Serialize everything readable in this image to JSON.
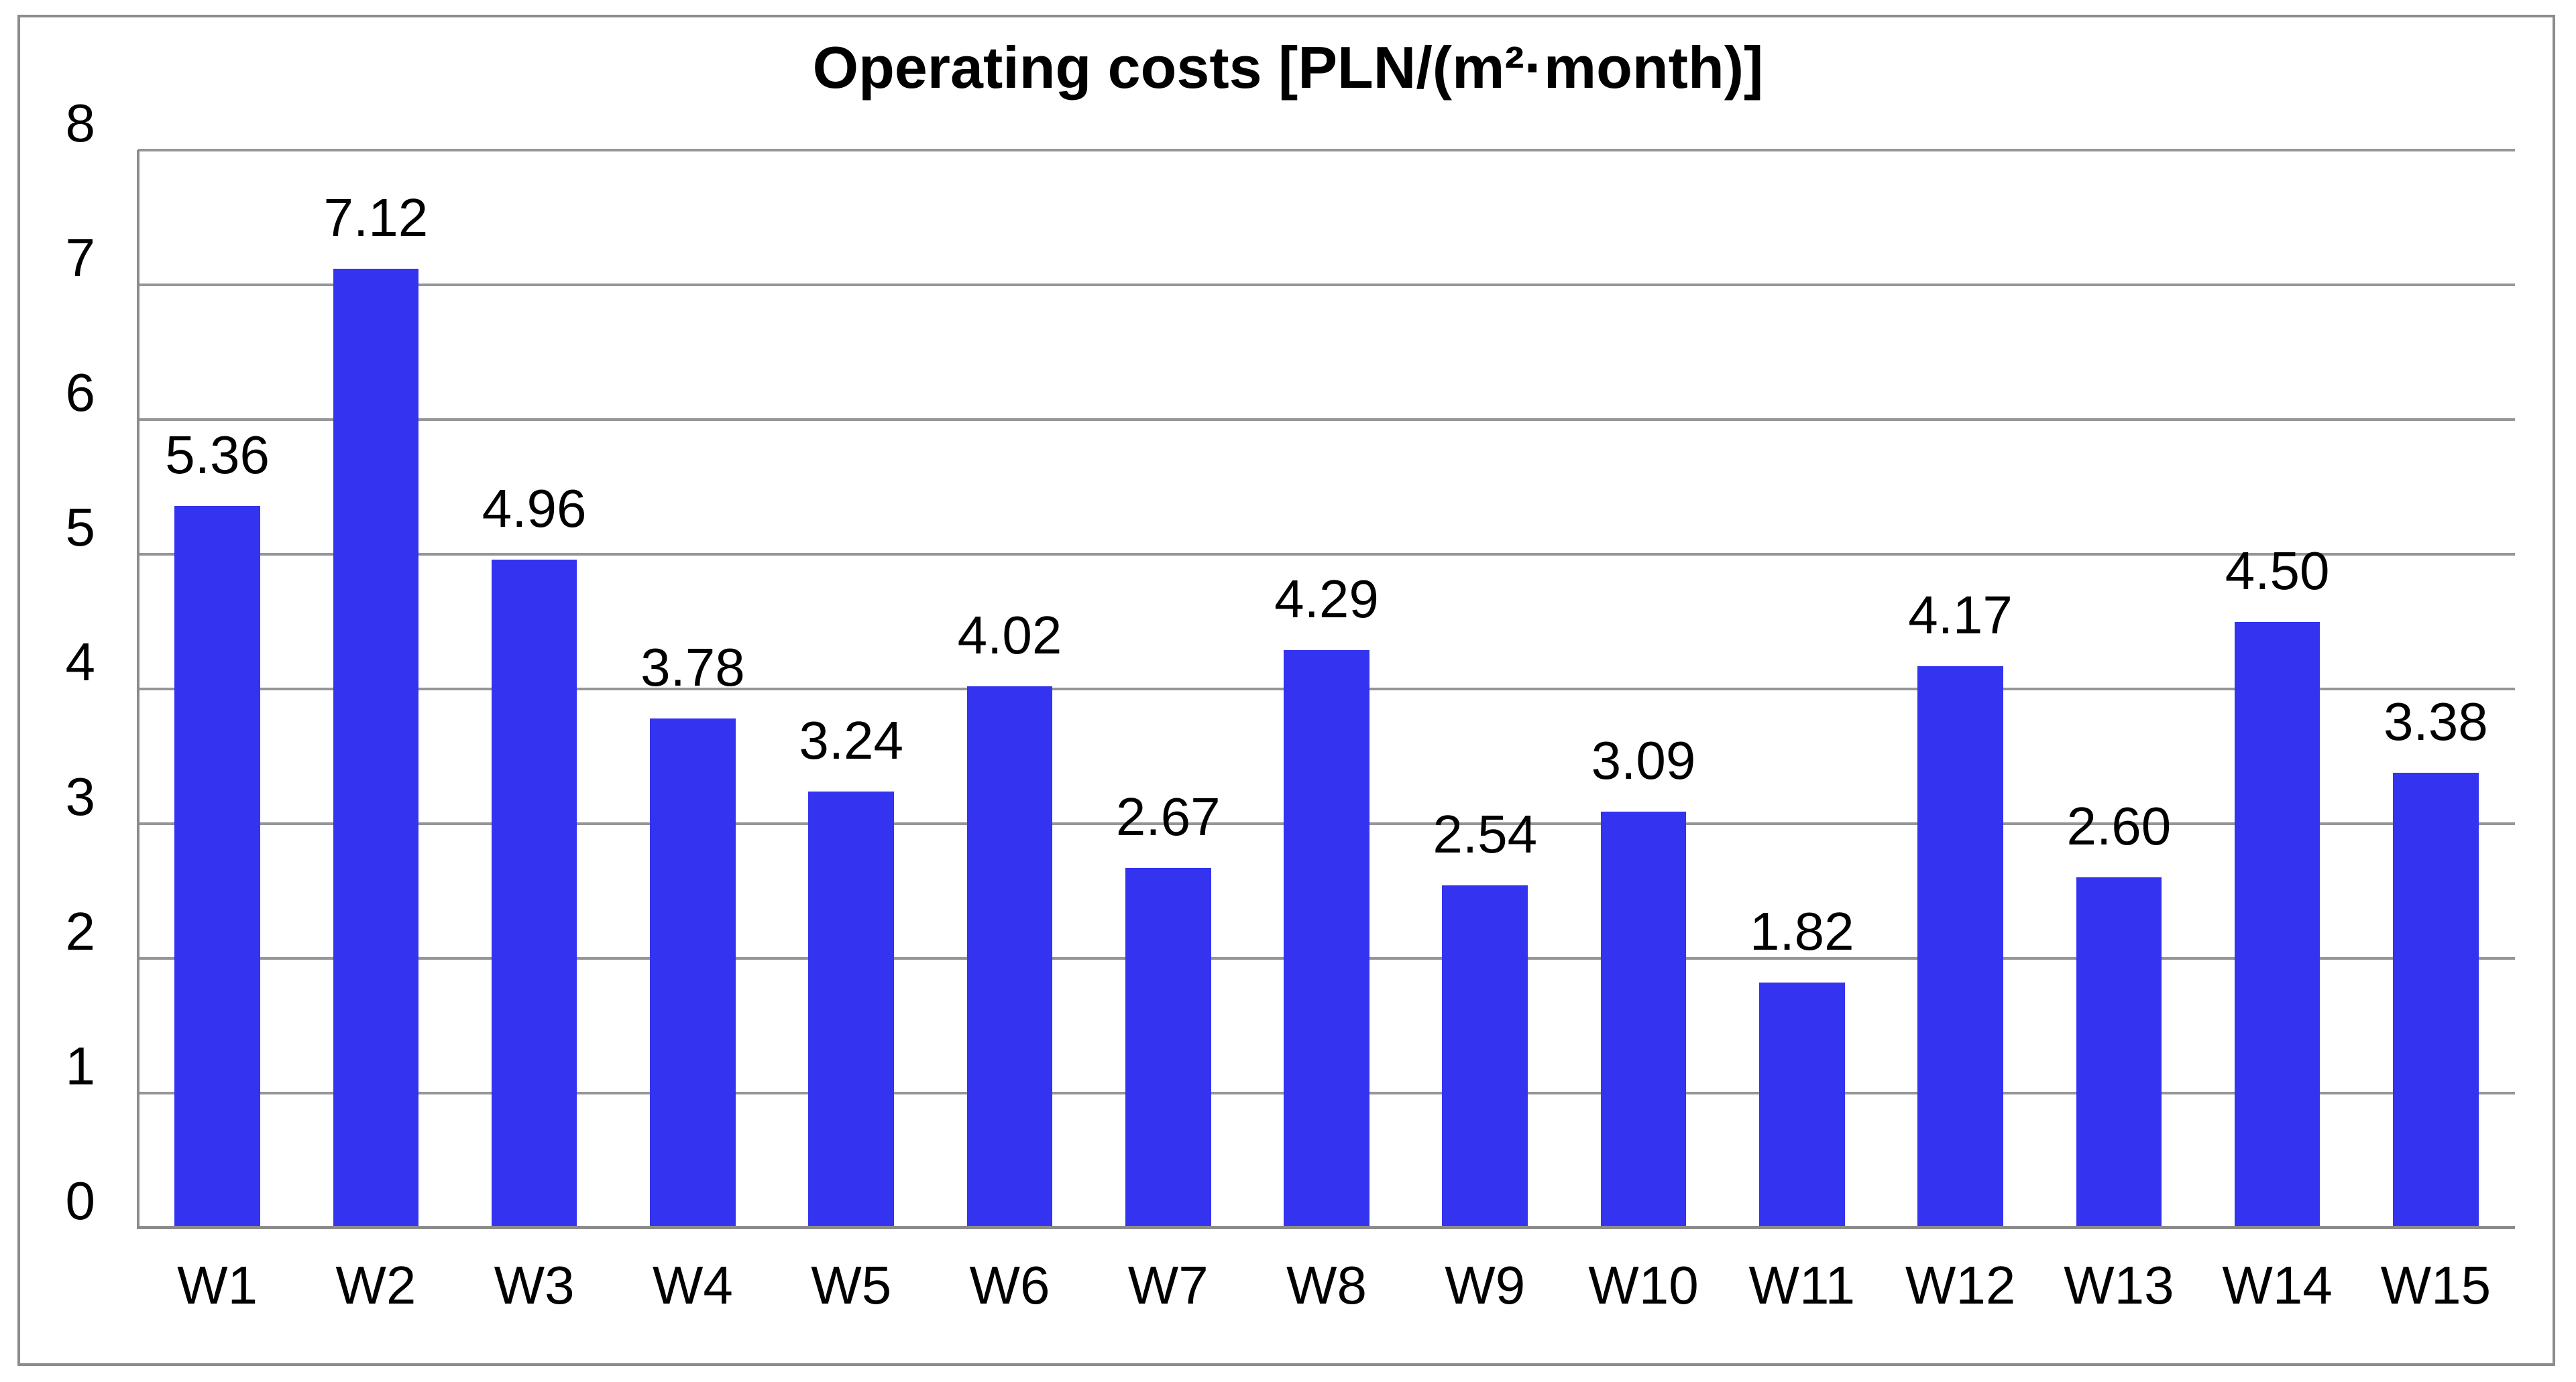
{
  "chart_data": {
    "type": "bar",
    "title": "Operating costs [PLN/(m²·month)]",
    "categories": [
      "W1",
      "W2",
      "W3",
      "W4",
      "W5",
      "W6",
      "W7",
      "W8",
      "W9",
      "W10",
      "W11",
      "W12",
      "W13",
      "W14",
      "W15"
    ],
    "values": [
      5.36,
      7.12,
      4.96,
      3.78,
      3.24,
      4.02,
      2.67,
      4.29,
      2.54,
      3.09,
      1.82,
      4.17,
      2.6,
      4.5,
      3.38
    ],
    "value_labels": [
      "5.36",
      "7.12",
      "4.96",
      "3.78",
      "3.24",
      "4.02",
      "2.67",
      "4.29",
      "2.54",
      "3.09",
      "1.82",
      "4.17",
      "2.60",
      "4.50",
      "3.38"
    ],
    "xlabel": "",
    "ylabel": "",
    "ylim": [
      0,
      8
    ],
    "yticks": [
      0,
      1,
      2,
      3,
      4,
      5,
      6,
      7,
      8
    ],
    "grid": true,
    "legend_position": "none",
    "bar_color": "#3333f0",
    "gridline_color": "#969696",
    "axis_color": "#8c8c8c",
    "frame_color": "#8c8c8c",
    "text_color": "#000000",
    "background_color": "#ffffff",
    "bar_width_fraction": 0.54
  }
}
